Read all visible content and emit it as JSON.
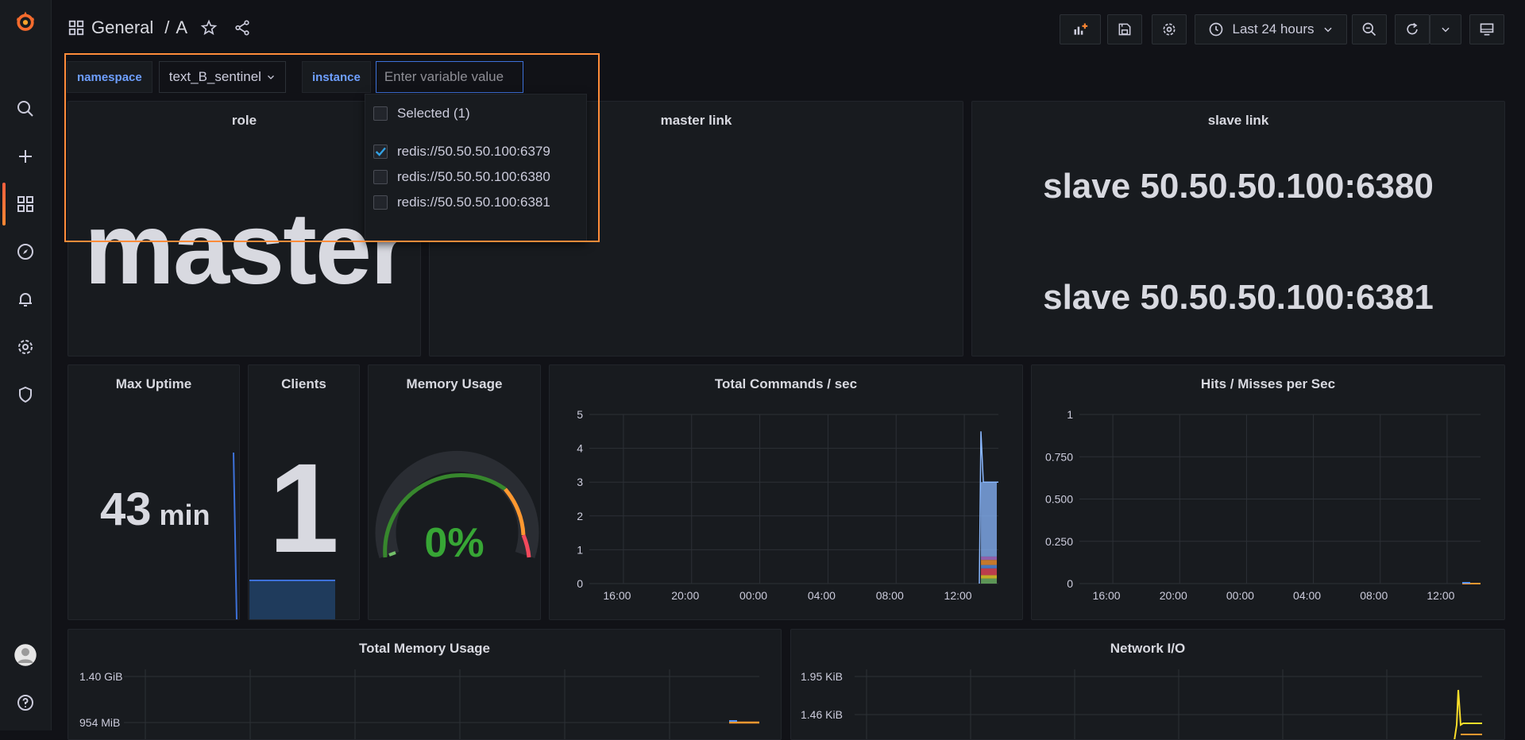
{
  "header": {
    "folder": "General",
    "separator": "/",
    "dashboard": "A",
    "time_range": "Last 24 hours"
  },
  "variables": {
    "namespace_label": "namespace",
    "namespace_value": "text_B_sentinel",
    "instance_label": "instance",
    "instance_placeholder": "Enter variable value",
    "dropdown": {
      "selected_label": "Selected (1)",
      "options": [
        {
          "label": "redis://50.50.50.100:6379",
          "checked": true
        },
        {
          "label": "redis://50.50.50.100:6380",
          "checked": false
        },
        {
          "label": "redis://50.50.50.100:6381",
          "checked": false
        }
      ]
    }
  },
  "panels": {
    "role": {
      "title": "role",
      "value": "master"
    },
    "master_link": {
      "title": "master link"
    },
    "slave_link": {
      "title": "slave link",
      "lines": [
        "slave 50.50.50.100:6380",
        "slave 50.50.50.100:6381"
      ]
    },
    "max_uptime": {
      "title": "Max Uptime",
      "value": "43",
      "unit": "min"
    },
    "clients": {
      "title": "Clients",
      "value": "1"
    },
    "memory_usage": {
      "title": "Memory Usage",
      "value": "0%"
    },
    "total_commands": {
      "title": "Total Commands / sec"
    },
    "hits_misses": {
      "title": "Hits / Misses per Sec"
    },
    "total_memory": {
      "title": "Total Memory Usage"
    },
    "network_io": {
      "title": "Network I/O"
    }
  },
  "chart_data": [
    {
      "type": "area",
      "name": "total_commands",
      "x_ticks": [
        "16:00",
        "20:00",
        "00:00",
        "04:00",
        "08:00",
        "12:00"
      ],
      "y_ticks": [
        "0",
        "1",
        "2",
        "3",
        "4",
        "5"
      ],
      "ylim": [
        0,
        5
      ],
      "colors": [
        "#73bf69",
        "#fade2a",
        "#f2495c",
        "#5794f2",
        "#ff9830",
        "#b877d9",
        "#8ab8ff"
      ]
    },
    {
      "type": "line",
      "name": "hits_misses",
      "x_ticks": [
        "16:00",
        "20:00",
        "00:00",
        "04:00",
        "08:00",
        "12:00"
      ],
      "y_ticks": [
        "0",
        "0.250",
        "0.500",
        "0.750",
        "1"
      ],
      "ylim": [
        0,
        1
      ]
    },
    {
      "type": "line",
      "name": "total_memory",
      "y_ticks": [
        "1.40 GiB",
        "954 MiB"
      ]
    },
    {
      "type": "line",
      "name": "network_io",
      "y_ticks": [
        "1.95 KiB",
        "1.46 KiB"
      ]
    }
  ]
}
